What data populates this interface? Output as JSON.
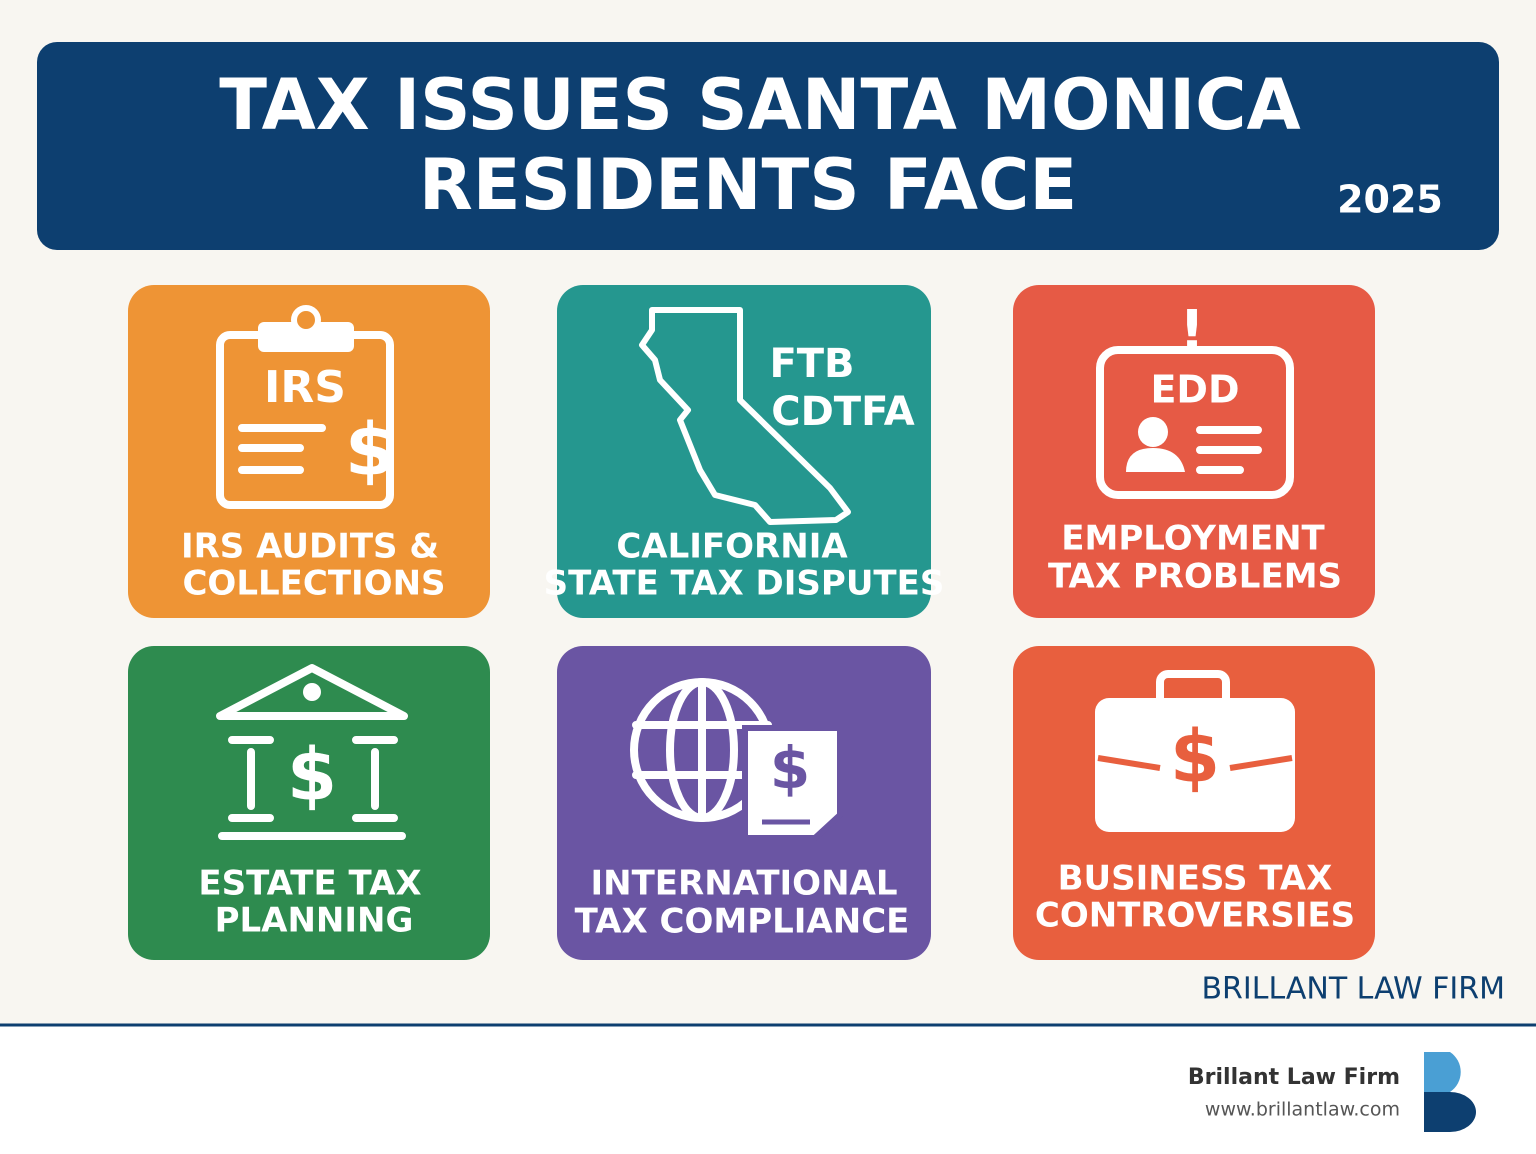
{
  "header": {
    "title_lines": [
      "TAX ISSUES SANTA MONICA",
      "RESIDENTS FACE"
    ],
    "year": "2025"
  },
  "cards": [
    {
      "icon_text": [
        "IRS",
        "$"
      ],
      "label_lines": [
        "IRS AUDITS &",
        "COLLECTIONS"
      ]
    },
    {
      "icon_text": [
        "FTB",
        "CDTFA"
      ],
      "label_lines": [
        "CALIFORNIA",
        "STATE TAX DISPUTES"
      ]
    },
    {
      "icon_text": [
        "!",
        "EDD"
      ],
      "label_lines": [
        "EMPLOYMENT",
        "TAX PROBLEMS"
      ]
    },
    {
      "icon_text": [
        "$"
      ],
      "label_lines": [
        "ESTATE TAX",
        "PLANNING"
      ]
    },
    {
      "icon_text": [
        "$"
      ],
      "label_lines": [
        "INTERNATIONAL",
        "TAX COMPLIANCE"
      ]
    },
    {
      "icon_text": [
        "$"
      ],
      "label_lines": [
        "BUSINESS TAX",
        "CONTROVERSIES"
      ]
    }
  ],
  "brand": "BRILLANT LAW FIRM",
  "footer": {
    "name": "Brillant Law Firm",
    "url": "www.brillantlaw.com"
  }
}
